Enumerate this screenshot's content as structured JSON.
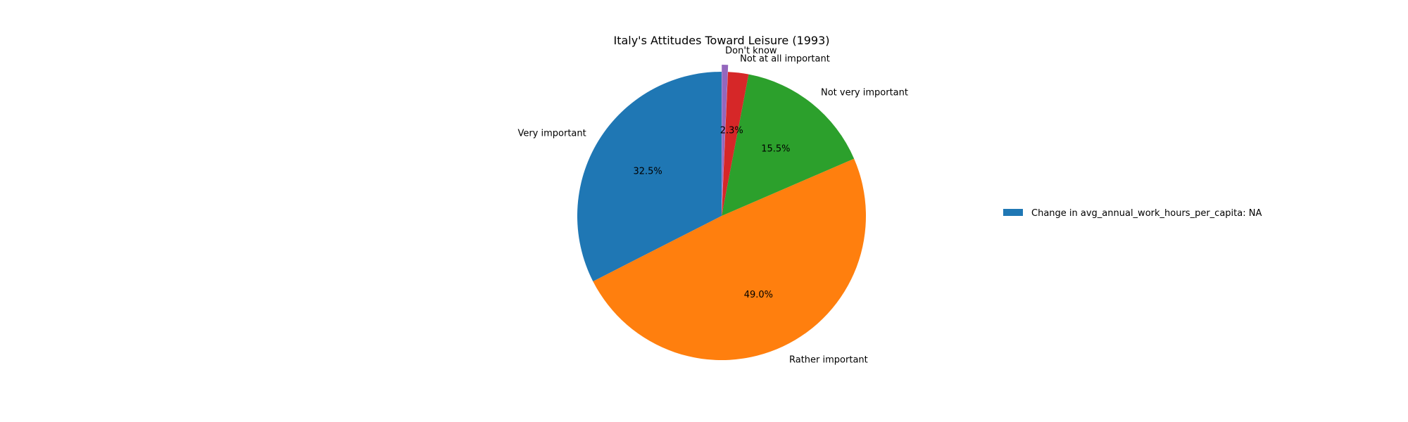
{
  "chart_data": {
    "type": "pie",
    "title": "Italy's Attitudes Toward Leisure (1993)",
    "slices": [
      {
        "label": "Very important",
        "value": 32.5,
        "pct_label": "32.5%",
        "color": "#1f77b4"
      },
      {
        "label": "Rather important",
        "value": 49.0,
        "pct_label": "49.0%",
        "color": "#ff7f0e"
      },
      {
        "label": "Not very important",
        "value": 15.5,
        "pct_label": "15.5%",
        "color": "#2ca02c"
      },
      {
        "label": "Not at all important",
        "value": 2.3,
        "pct_label": "2.3%",
        "color": "#d62728"
      },
      {
        "label": "Don't know",
        "value": 0.7,
        "pct_label": "",
        "color": "#9467bd"
      }
    ],
    "start_angle": 90,
    "direction": "counterclockwise",
    "exploded_slice": "Don't know",
    "legend": {
      "placement": "right",
      "entries": [
        {
          "label": "Change in avg_annual_work_hours_per_capita: NA",
          "color": "#1f77b4"
        }
      ]
    }
  }
}
